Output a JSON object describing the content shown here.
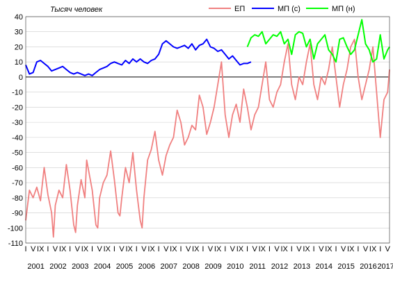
{
  "chart_data": {
    "type": "line",
    "ylabel": "Тысяч человек",
    "ylim": [
      -110,
      40
    ],
    "y_ticks": [
      "-110",
      "-100",
      "-90",
      "-80",
      "-70",
      "-60",
      "-50",
      "-40",
      "-30",
      "-20",
      "-10",
      "0",
      "10",
      "20",
      "30",
      "40"
    ],
    "grid": true,
    "legend_position": "top",
    "month_tick_labels": [
      "I",
      "V",
      "IX",
      "I",
      "V",
      "IX",
      "I",
      "V",
      "IX",
      "I",
      "V",
      "IX",
      "I",
      "V",
      "IX",
      "I",
      "V",
      "IX",
      "I",
      "V",
      "IX",
      "I",
      "V",
      "IX",
      "I",
      "V",
      "IX",
      "I",
      "V",
      "IX",
      "I",
      "V",
      "IX",
      "I",
      "V",
      "IX",
      "I",
      "V",
      "IX",
      "I",
      "V",
      "IX",
      "I",
      "V",
      "IX",
      "I",
      "V",
      "IX",
      "I",
      "V"
    ],
    "year_labels": [
      "2001",
      "2002",
      "2003",
      "2004",
      "2005",
      "2006",
      "2007",
      "2008",
      "2009",
      "2010",
      "2011",
      "2012",
      "2013",
      "2014",
      "2015",
      "2016",
      "2017"
    ],
    "series": [
      {
        "name": "ЕП",
        "color": "#f08080",
        "points": [
          [
            "2001-01",
            -95
          ],
          [
            "2001-03",
            -75
          ],
          [
            "2001-05",
            -80
          ],
          [
            "2001-07",
            -73
          ],
          [
            "2001-09",
            -82
          ],
          [
            "2001-11",
            -60
          ],
          [
            "2002-01",
            -78
          ],
          [
            "2002-03",
            -90
          ],
          [
            "2002-04",
            -106
          ],
          [
            "2002-05",
            -85
          ],
          [
            "2002-07",
            -75
          ],
          [
            "2002-09",
            -80
          ],
          [
            "2002-11",
            -58
          ],
          [
            "2003-01",
            -75
          ],
          [
            "2003-03",
            -98
          ],
          [
            "2003-04",
            -103
          ],
          [
            "2003-05",
            -85
          ],
          [
            "2003-07",
            -68
          ],
          [
            "2003-09",
            -80
          ],
          [
            "2003-10",
            -55
          ],
          [
            "2004-01",
            -75
          ],
          [
            "2004-03",
            -98
          ],
          [
            "2004-04",
            -100
          ],
          [
            "2004-05",
            -80
          ],
          [
            "2004-07",
            -70
          ],
          [
            "2004-09",
            -65
          ],
          [
            "2004-11",
            -49
          ],
          [
            "2005-01",
            -68
          ],
          [
            "2005-03",
            -90
          ],
          [
            "2005-04",
            -92
          ],
          [
            "2005-05",
            -80
          ],
          [
            "2005-07",
            -60
          ],
          [
            "2005-09",
            -70
          ],
          [
            "2005-11",
            -50
          ],
          [
            "2006-01",
            -75
          ],
          [
            "2006-03",
            -95
          ],
          [
            "2006-04",
            -100
          ],
          [
            "2006-05",
            -80
          ],
          [
            "2006-07",
            -55
          ],
          [
            "2006-09",
            -48
          ],
          [
            "2006-11",
            -36
          ],
          [
            "2007-01",
            -55
          ],
          [
            "2007-03",
            -65
          ],
          [
            "2007-05",
            -52
          ],
          [
            "2007-07",
            -45
          ],
          [
            "2007-09",
            -40
          ],
          [
            "2007-11",
            -22
          ],
          [
            "2008-01",
            -30
          ],
          [
            "2008-03",
            -45
          ],
          [
            "2008-05",
            -40
          ],
          [
            "2008-07",
            -32
          ],
          [
            "2008-09",
            -35
          ],
          [
            "2008-11",
            -12
          ],
          [
            "2009-01",
            -20
          ],
          [
            "2009-03",
            -38
          ],
          [
            "2009-05",
            -30
          ],
          [
            "2009-07",
            -20
          ],
          [
            "2009-09",
            -5
          ],
          [
            "2009-11",
            10
          ],
          [
            "2010-01",
            -25
          ],
          [
            "2010-03",
            -40
          ],
          [
            "2010-05",
            -25
          ],
          [
            "2010-07",
            -18
          ],
          [
            "2010-09",
            -30
          ],
          [
            "2010-11",
            -8
          ],
          [
            "2011-01",
            -20
          ],
          [
            "2011-03",
            -35
          ],
          [
            "2011-05",
            -25
          ],
          [
            "2011-07",
            -20
          ],
          [
            "2011-09",
            -5
          ],
          [
            "2011-11",
            10
          ],
          [
            "2012-01",
            -15
          ],
          [
            "2012-03",
            -20
          ],
          [
            "2012-05",
            -10
          ],
          [
            "2012-07",
            -5
          ],
          [
            "2012-09",
            10
          ],
          [
            "2012-11",
            22
          ],
          [
            "2013-01",
            -5
          ],
          [
            "2013-03",
            -15
          ],
          [
            "2013-05",
            0
          ],
          [
            "2013-07",
            -5
          ],
          [
            "2013-09",
            10
          ],
          [
            "2013-11",
            22
          ],
          [
            "2014-01",
            -5
          ],
          [
            "2014-03",
            -15
          ],
          [
            "2014-05",
            0
          ],
          [
            "2014-07",
            -5
          ],
          [
            "2014-09",
            5
          ],
          [
            "2014-11",
            20
          ],
          [
            "2015-01",
            0
          ],
          [
            "2015-03",
            -20
          ],
          [
            "2015-05",
            -5
          ],
          [
            "2015-07",
            5
          ],
          [
            "2015-09",
            20
          ],
          [
            "2015-11",
            25
          ],
          [
            "2016-01",
            0
          ],
          [
            "2016-03",
            -15
          ],
          [
            "2016-05",
            -5
          ],
          [
            "2016-07",
            5
          ],
          [
            "2016-09",
            20
          ],
          [
            "2016-11",
            -10
          ],
          [
            "2017-01",
            -40
          ],
          [
            "2017-03",
            -15
          ],
          [
            "2017-05",
            -10
          ],
          [
            "2017-06",
            5
          ]
        ]
      },
      {
        "name": "МП (с)",
        "color": "#0000ff",
        "points": [
          [
            "2001-01",
            8
          ],
          [
            "2001-03",
            2
          ],
          [
            "2001-05",
            3
          ],
          [
            "2001-07",
            10
          ],
          [
            "2001-09",
            11
          ],
          [
            "2001-11",
            9
          ],
          [
            "2002-01",
            7
          ],
          [
            "2002-03",
            4
          ],
          [
            "2002-05",
            5
          ],
          [
            "2002-07",
            6
          ],
          [
            "2002-09",
            7
          ],
          [
            "2002-11",
            5
          ],
          [
            "2003-01",
            3
          ],
          [
            "2003-03",
            2
          ],
          [
            "2003-05",
            3
          ],
          [
            "2003-07",
            2
          ],
          [
            "2003-09",
            1
          ],
          [
            "2003-11",
            2
          ],
          [
            "2004-01",
            1
          ],
          [
            "2004-03",
            3
          ],
          [
            "2004-05",
            5
          ],
          [
            "2004-07",
            6
          ],
          [
            "2004-09",
            7
          ],
          [
            "2004-11",
            9
          ],
          [
            "2005-01",
            10
          ],
          [
            "2005-03",
            9
          ],
          [
            "2005-05",
            8
          ],
          [
            "2005-07",
            11
          ],
          [
            "2005-09",
            9
          ],
          [
            "2005-11",
            12
          ],
          [
            "2006-01",
            10
          ],
          [
            "2006-03",
            12
          ],
          [
            "2006-05",
            10
          ],
          [
            "2006-07",
            9
          ],
          [
            "2006-09",
            11
          ],
          [
            "2006-11",
            12
          ],
          [
            "2007-01",
            15
          ],
          [
            "2007-03",
            22
          ],
          [
            "2007-05",
            24
          ],
          [
            "2007-07",
            22
          ],
          [
            "2007-09",
            20
          ],
          [
            "2007-11",
            19
          ],
          [
            "2008-01",
            20
          ],
          [
            "2008-03",
            21
          ],
          [
            "2008-05",
            19
          ],
          [
            "2008-07",
            22
          ],
          [
            "2008-09",
            18
          ],
          [
            "2008-11",
            21
          ],
          [
            "2009-01",
            22
          ],
          [
            "2009-03",
            25
          ],
          [
            "2009-05",
            20
          ],
          [
            "2009-07",
            19
          ],
          [
            "2009-09",
            17
          ],
          [
            "2009-11",
            18
          ],
          [
            "2010-01",
            15
          ],
          [
            "2010-03",
            12
          ],
          [
            "2010-05",
            14
          ],
          [
            "2010-07",
            11
          ],
          [
            "2010-09",
            8
          ],
          [
            "2010-11",
            9
          ],
          [
            "2011-01",
            9
          ],
          [
            "2011-03",
            10
          ]
        ]
      },
      {
        "name": "МП (н)",
        "color": "#00ff00",
        "points": [
          [
            "2011-01",
            20
          ],
          [
            "2011-03",
            26
          ],
          [
            "2011-05",
            28
          ],
          [
            "2011-07",
            27
          ],
          [
            "2011-09",
            30
          ],
          [
            "2011-11",
            22
          ],
          [
            "2012-01",
            25
          ],
          [
            "2012-03",
            28
          ],
          [
            "2012-05",
            27
          ],
          [
            "2012-07",
            30
          ],
          [
            "2012-09",
            22
          ],
          [
            "2012-11",
            25
          ],
          [
            "2013-01",
            15
          ],
          [
            "2013-03",
            28
          ],
          [
            "2013-05",
            30
          ],
          [
            "2013-07",
            29
          ],
          [
            "2013-09",
            20
          ],
          [
            "2013-11",
            25
          ],
          [
            "2014-01",
            12
          ],
          [
            "2014-03",
            22
          ],
          [
            "2014-05",
            25
          ],
          [
            "2014-07",
            28
          ],
          [
            "2014-09",
            18
          ],
          [
            "2014-11",
            15
          ],
          [
            "2015-01",
            10
          ],
          [
            "2015-03",
            25
          ],
          [
            "2015-05",
            26
          ],
          [
            "2015-07",
            20
          ],
          [
            "2015-09",
            15
          ],
          [
            "2015-11",
            18
          ],
          [
            "2016-01",
            28
          ],
          [
            "2016-03",
            38
          ],
          [
            "2016-05",
            22
          ],
          [
            "2016-07",
            18
          ],
          [
            "2016-09",
            10
          ],
          [
            "2016-11",
            12
          ],
          [
            "2017-01",
            28
          ],
          [
            "2017-03",
            12
          ],
          [
            "2017-05",
            18
          ],
          [
            "2017-06",
            20
          ]
        ]
      }
    ]
  }
}
